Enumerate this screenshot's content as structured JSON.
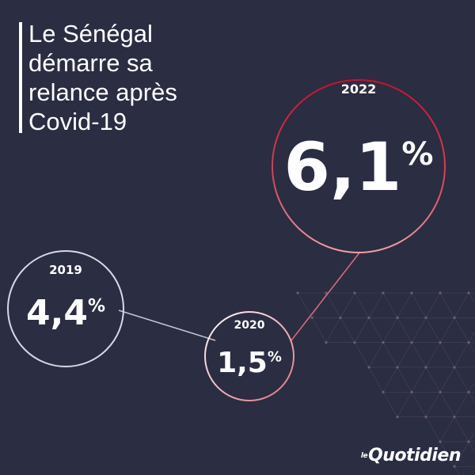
{
  "headline": {
    "lines": [
      "Le Sénégal",
      "démarre sa",
      "relance après",
      "Covid-19"
    ]
  },
  "colors": {
    "background": "#2b2d42",
    "circle_start": "#e8e8f2",
    "circle_end": "#c8102e",
    "text": "#ffffff"
  },
  "chart_data": {
    "type": "line",
    "title": "Le Sénégal démarre sa relance après Covid-19",
    "x": [
      "2019",
      "2020",
      "2022"
    ],
    "series": [
      {
        "values": [
          4.4,
          1.5,
          6.1
        ],
        "labels": [
          "4,4%",
          "1,5%",
          "6,1%"
        ]
      }
    ],
    "grid": false,
    "legend": "none"
  },
  "branding": {
    "prefix": "le",
    "name": "Quotidien"
  }
}
